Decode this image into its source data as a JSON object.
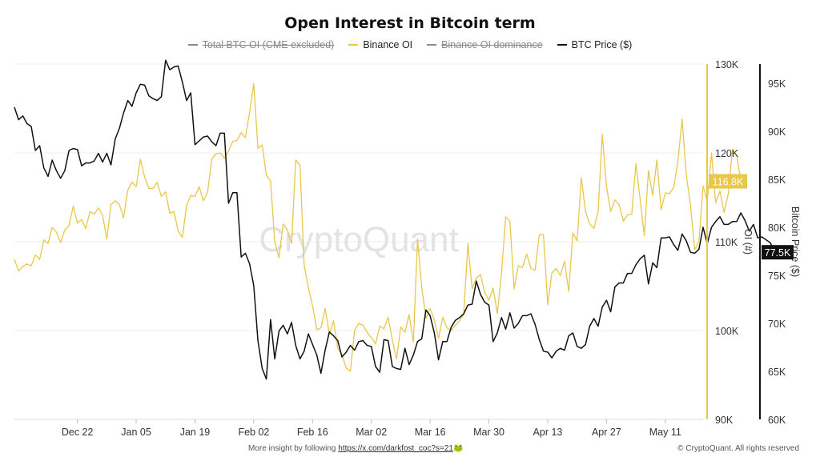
{
  "chart_data": {
    "type": "line",
    "title": "Open Interest in Bitcoin term",
    "watermark": "CryptoQuant",
    "legend": [
      {
        "label": "Total BTC OI (CME excluded)",
        "color": "#888888",
        "hidden": true
      },
      {
        "label": "Binance OI",
        "color": "#e8c84a",
        "hidden": false
      },
      {
        "label": "Binance OI dominance",
        "color": "#888888",
        "hidden": true
      },
      {
        "label": "BTC Price ($)",
        "color": "#111111",
        "hidden": false
      }
    ],
    "x_axis": {
      "range": [
        "2024-12-07",
        "2025-05-20"
      ],
      "ticks": [
        "Dec 22",
        "Jan 05",
        "Jan 19",
        "Feb 02",
        "Feb 16",
        "Mar 02",
        "Mar 16",
        "Mar 30",
        "Apr 13",
        "Apr 27",
        "May 11"
      ],
      "tick_dates": [
        "2024-12-22",
        "2025-01-05",
        "2025-01-19",
        "2025-02-02",
        "2025-02-16",
        "2025-03-02",
        "2025-03-16",
        "2025-03-30",
        "2025-04-13",
        "2025-04-27",
        "2025-05-11"
      ]
    },
    "y_left": {
      "label": "OI (#)",
      "range": [
        90000,
        130000
      ],
      "ticks": [
        "90K",
        "100K",
        "110K",
        "120K",
        "130K"
      ],
      "tick_values": [
        90000,
        100000,
        110000,
        120000,
        130000
      ],
      "color": "#e8c84a"
    },
    "y_right": {
      "label": "Bitcoin Price ($)",
      "range": [
        60000,
        97000
      ],
      "ticks": [
        "60K",
        "65K",
        "70K",
        "75K",
        "80K",
        "85K",
        "90K",
        "95K"
      ],
      "tick_values": [
        60000,
        65000,
        70000,
        75000,
        80000,
        85000,
        90000,
        95000
      ],
      "color": "#111111"
    },
    "last_value_labels": {
      "binance_oi": "116.8K",
      "btc_price": "77.5K"
    },
    "grid": true,
    "series": [
      {
        "name": "Binance OI",
        "axis": "left",
        "color": "#e8c84a",
        "start": "2024-12-07",
        "values": [
          108000,
          106700,
          107200,
          107500,
          107300,
          108500,
          108000,
          110200,
          109800,
          111600,
          111100,
          109900,
          111300,
          111800,
          114000,
          112100,
          112500,
          111500,
          113400,
          113100,
          113800,
          113000,
          110300,
          114200,
          114600,
          114200,
          112700,
          115800,
          116700,
          116200,
          119300,
          117300,
          116000,
          116000,
          116700,
          115100,
          115600,
          113200,
          113400,
          111200,
          110500,
          114100,
          115200,
          115100,
          116200,
          114600,
          115600,
          119300,
          119900,
          120000,
          119400,
          120200,
          121300,
          121400,
          122300,
          121700,
          124600,
          127800,
          120500,
          120900,
          117500,
          116800,
          110000,
          108200,
          112000,
          111300,
          109800,
          119200,
          118600,
          107400,
          104800,
          102800,
          100100,
          100300,
          102500,
          99600,
          101100,
          98000,
          97300,
          95800,
          95400,
          100000,
          100800,
          100600,
          99800,
          99200,
          98500,
          100500,
          100200,
          101500,
          98900,
          96800,
          100400,
          99800,
          101800,
          98700,
          110300,
          104800,
          101400,
          102500,
          101200,
          99100,
          101500,
          100300,
          100000,
          100600,
          101100,
          101800,
          109800,
          104700,
          105900,
          106300,
          104300,
          103400,
          104800,
          101900,
          106500,
          112800,
          112300,
          104700,
          107300,
          107100,
          108600,
          107000,
          106800,
          110800,
          110800,
          102900,
          106500,
          107000,
          106200,
          107800,
          104400,
          111000,
          110100,
          117200,
          113400,
          112000,
          111500,
          113400,
          122100,
          116200,
          113400,
          114700,
          114200,
          112300,
          113000,
          113100,
          118800,
          114800,
          110700,
          118000,
          115200,
          119200,
          113600,
          115500,
          115400,
          116100,
          119000,
          123800,
          117500,
          114100,
          109100,
          110000,
          116300,
          114500,
          120000,
          114400,
          115700,
          113300,
          115400,
          120400,
          119700,
          116800
        ]
      },
      {
        "name": "BTC Price ($)",
        "axis": "right",
        "color": "#111111",
        "start": "2024-12-07",
        "values": [
          92500,
          91200,
          91600,
          90800,
          90500,
          88000,
          88500,
          86200,
          85300,
          87000,
          85900,
          85100,
          85900,
          88000,
          88200,
          88100,
          86400,
          86700,
          86700,
          86900,
          87700,
          86800,
          87700,
          86500,
          89200,
          90300,
          91900,
          93200,
          92600,
          94000,
          94900,
          94800,
          93700,
          93400,
          93200,
          93600,
          97400,
          96400,
          96700,
          96800,
          95100,
          93200,
          94000,
          88600,
          89000,
          89400,
          89500,
          88900,
          88500,
          89800,
          89800,
          82500,
          83600,
          83600,
          76900,
          77300,
          76200,
          73900,
          68200,
          65300,
          64200,
          70400,
          66300,
          69200,
          69800,
          68900,
          70100,
          67700,
          66300,
          67100,
          68900,
          67800,
          66700,
          64800,
          67200,
          69100,
          68700,
          68200,
          66500,
          67000,
          67700,
          67200,
          68100,
          68200,
          67700,
          67600,
          65500,
          64900,
          68300,
          68200,
          65500,
          65300,
          65200,
          67400,
          65700,
          66700,
          68100,
          68400,
          71400,
          70800,
          69000,
          66200,
          68100,
          68100,
          69600,
          70300,
          70600,
          71000,
          71900,
          72000,
          74400,
          73000,
          72200,
          71900,
          68100,
          69000,
          70600,
          69400,
          71100,
          69500,
          70000,
          70800,
          70800,
          71000,
          69900,
          68300,
          67100,
          67000,
          66400,
          67100,
          67400,
          67200,
          68700,
          69000,
          67600,
          67400,
          67800,
          69700,
          70500,
          69700,
          71700,
          72400,
          71200,
          73800,
          74200,
          74200,
          75200,
          75200,
          76100,
          76700,
          77100,
          74100,
          76300,
          75800,
          78900,
          78900,
          79000,
          78200,
          77600,
          79300,
          78600,
          77400,
          77300,
          77700,
          80000,
          78300,
          80000,
          80600,
          81100,
          80300,
          80300,
          80600,
          80600,
          81500,
          80700,
          79600,
          80300,
          78900,
          79000,
          78700,
          78400,
          77500,
          77700,
          77400
        ]
      }
    ]
  },
  "footer": {
    "text": "More insight by following",
    "link": "https://x.com/darkfost_coc?s=21",
    "link_emoji": "🐸",
    "copyright": "© CryptoQuant. All rights reserved"
  }
}
